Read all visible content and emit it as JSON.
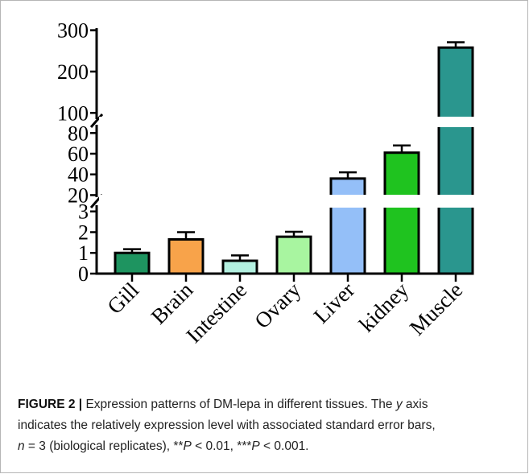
{
  "chart_data": {
    "type": "bar",
    "categories": [
      "Gill",
      "Brain",
      "Intestine",
      "Ovary",
      "Liver",
      "kidney",
      "Muscle"
    ],
    "values": [
      1.0,
      1.65,
      0.62,
      1.78,
      36,
      61,
      258
    ],
    "errors": [
      0.18,
      0.35,
      0.26,
      0.24,
      6,
      7,
      13
    ],
    "colors": [
      "#1e9460",
      "#f8a34a",
      "#b3f0e0",
      "#a8f5a0",
      "#94bff8",
      "#1fc31f",
      "#2a968e"
    ],
    "y_axis_segments": [
      {
        "range": [
          0,
          3.3
        ],
        "ticks": [
          "0",
          "1",
          "2",
          "3"
        ]
      },
      {
        "range": [
          18,
          88
        ],
        "ticks": [
          "20",
          "40",
          "60",
          "80"
        ]
      },
      {
        "range": [
          85,
          305
        ],
        "ticks": [
          "100",
          "200",
          "300"
        ]
      }
    ],
    "broken_axis": true
  },
  "caption": {
    "lead": "FIGURE 2 |",
    "line1": " Expression patterns of DM-lepa in different tissues. The ",
    "y": "y",
    "line1b": " axis",
    "line2": "indicates the relatively expression level with associated standard error bars,",
    "n": "n",
    "line3a": " = 3 (biological replicates), **",
    "p1": "P",
    "line3b": " < 0.01, ***",
    "p2": "P",
    "line3c": " < 0.001."
  }
}
